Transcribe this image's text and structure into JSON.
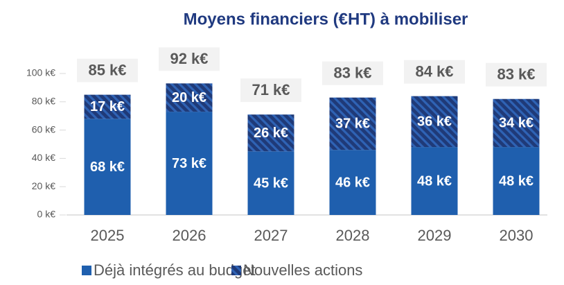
{
  "chart_data": {
    "type": "stacked_bar",
    "title": "Moyens financiers (€HT) à mobiliser",
    "categories": [
      "2025",
      "2026",
      "2027",
      "2028",
      "2029",
      "2030"
    ],
    "series": [
      {
        "name": "Déjà intégrés au budget",
        "color": "#1f5fae",
        "pattern": "solid",
        "values": [
          68,
          73,
          45,
          46,
          48,
          48
        ],
        "value_labels": [
          "68 k€",
          "73 k€",
          "45 k€",
          "46 k€",
          "48 k€",
          "48 k€"
        ]
      },
      {
        "name": "Nouvelles actions",
        "color": "#1f3a78",
        "pattern": "hatch",
        "values": [
          17,
          20,
          26,
          37,
          36,
          34
        ],
        "value_labels": [
          "17 k€",
          "20 k€",
          "26 k€",
          "37 k€",
          "36 k€",
          "34 k€"
        ]
      }
    ],
    "totals": {
      "values": [
        85,
        92,
        71,
        83,
        84,
        83
      ],
      "value_labels": [
        "85 k€",
        "92 k€",
        "71 k€",
        "83 k€",
        "84 k€",
        "83 k€"
      ]
    },
    "ylim": [
      0,
      100
    ],
    "yticks": [
      {
        "value": 0,
        "label": "0 k€"
      },
      {
        "value": 20,
        "label": "20 k€"
      },
      {
        "value": 40,
        "label": "40 k€"
      },
      {
        "value": 60,
        "label": "60 k€"
      },
      {
        "value": 80,
        "label": "80 k€"
      },
      {
        "value": 100,
        "label": "100 k€"
      }
    ],
    "legend": "bottom"
  }
}
